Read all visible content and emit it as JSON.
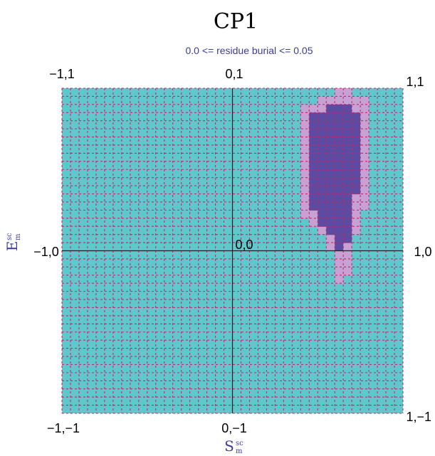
{
  "chart_data": {
    "type": "heatmap",
    "title": "CP1",
    "subtitle": "0.0 <= residue burial <= 0.05",
    "xlabel": {
      "main": "S",
      "sup": "sc",
      "sub": "m"
    },
    "ylabel": {
      "main": "E",
      "sup": "sc",
      "sub": "m"
    },
    "xlim": [
      -1,
      1
    ],
    "ylim": [
      -1,
      1
    ],
    "corner_labels": {
      "top_left": "−1,1",
      "top_center": "0,1",
      "top_right": "1,1",
      "middle_left": "−1,0",
      "center": "0,0",
      "middle_right": "1,0",
      "bottom_left": "−1,−1",
      "bottom_center": "0,−1",
      "bottom_right": "1,−1"
    },
    "grid": true,
    "grid_cells": 40,
    "colors": {
      "background": "#5fc8cc",
      "low_density": "#c7a0d4",
      "high_density": "#5b4ba3",
      "grid_line": "#c02a6a",
      "axis_line": "#222222"
    },
    "high_density_rows": [
      {
        "y": 0.88,
        "x": [
          0.55,
          0.72
        ]
      },
      {
        "y": 0.83,
        "x": [
          0.47,
          0.75
        ]
      },
      {
        "y": 0.78,
        "x": [
          0.47,
          0.75
        ]
      },
      {
        "y": 0.73,
        "x": [
          0.47,
          0.75
        ]
      },
      {
        "y": 0.68,
        "x": [
          0.47,
          0.75
        ]
      },
      {
        "y": 0.63,
        "x": [
          0.47,
          0.75
        ]
      },
      {
        "y": 0.58,
        "x": [
          0.47,
          0.75
        ]
      },
      {
        "y": 0.53,
        "x": [
          0.47,
          0.75
        ]
      },
      {
        "y": 0.48,
        "x": [
          0.47,
          0.75
        ]
      },
      {
        "y": 0.43,
        "x": [
          0.47,
          0.75
        ]
      },
      {
        "y": 0.38,
        "x": [
          0.47,
          0.75
        ]
      },
      {
        "y": 0.33,
        "x": [
          0.47,
          0.72
        ]
      },
      {
        "y": 0.28,
        "x": [
          0.47,
          0.72
        ]
      },
      {
        "y": 0.23,
        "x": [
          0.52,
          0.72
        ]
      },
      {
        "y": 0.18,
        "x": [
          0.52,
          0.72
        ]
      },
      {
        "y": 0.13,
        "x": [
          0.55,
          0.72
        ]
      },
      {
        "y": 0.08,
        "x": [
          0.58,
          0.68
        ]
      },
      {
        "y": 0.03,
        "x": [
          0.6,
          0.66
        ]
      }
    ],
    "low_density_rows": [
      {
        "y": 0.98,
        "x": [
          0.58,
          0.68
        ]
      },
      {
        "y": 0.93,
        "x": [
          0.5,
          0.78
        ]
      },
      {
        "y": 0.88,
        "x": [
          0.42,
          0.8
        ]
      },
      {
        "y": 0.83,
        "x": [
          0.42,
          0.8
        ]
      },
      {
        "y": 0.78,
        "x": [
          0.4,
          0.8
        ]
      },
      {
        "y": 0.73,
        "x": [
          0.4,
          0.8
        ]
      },
      {
        "y": 0.68,
        "x": [
          0.4,
          0.8
        ]
      },
      {
        "y": 0.63,
        "x": [
          0.4,
          0.8
        ]
      },
      {
        "y": 0.58,
        "x": [
          0.4,
          0.8
        ]
      },
      {
        "y": 0.53,
        "x": [
          0.4,
          0.8
        ]
      },
      {
        "y": 0.48,
        "x": [
          0.4,
          0.8
        ]
      },
      {
        "y": 0.43,
        "x": [
          0.4,
          0.8
        ]
      },
      {
        "y": 0.38,
        "x": [
          0.4,
          0.8
        ]
      },
      {
        "y": 0.33,
        "x": [
          0.4,
          0.78
        ]
      },
      {
        "y": 0.28,
        "x": [
          0.4,
          0.78
        ]
      },
      {
        "y": 0.23,
        "x": [
          0.4,
          0.75
        ]
      },
      {
        "y": 0.18,
        "x": [
          0.45,
          0.75
        ]
      },
      {
        "y": 0.13,
        "x": [
          0.5,
          0.75
        ]
      },
      {
        "y": 0.08,
        "x": [
          0.55,
          0.72
        ]
      },
      {
        "y": 0.03,
        "x": [
          0.55,
          0.7
        ]
      },
      {
        "y": -0.02,
        "x": [
          0.58,
          0.7
        ]
      },
      {
        "y": -0.07,
        "x": [
          0.58,
          0.68
        ]
      },
      {
        "y": -0.12,
        "x": [
          0.58,
          0.68
        ]
      },
      {
        "y": -0.17,
        "x": [
          0.58,
          0.66
        ]
      }
    ]
  }
}
